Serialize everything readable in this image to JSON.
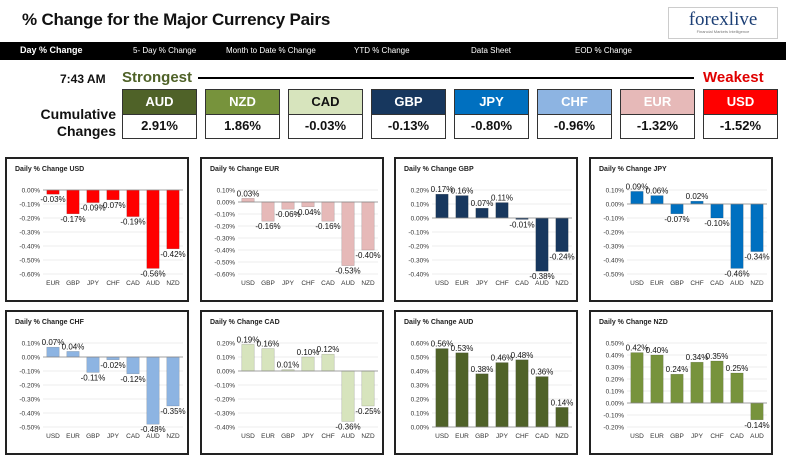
{
  "header": {
    "title": "% Change for the Major Currency Pairs"
  },
  "logo": {
    "text": "forexlive",
    "subtitle": "Financial Markets Intelligence"
  },
  "nav": [
    {
      "label": "Day % Change",
      "active": true
    },
    {
      "label": "5- Day % Change"
    },
    {
      "label": "Month to Date % Change"
    },
    {
      "label": "YTD % Change"
    },
    {
      "label": "Data Sheet"
    },
    {
      "label": "EOD % Change"
    }
  ],
  "summary": {
    "time": "7:43 AM",
    "strongest_label": "Strongest",
    "weakest_label": "Weakest",
    "cumulative_label": "Cumulative Changes",
    "currencies": [
      {
        "code": "AUD",
        "value": "2.91%",
        "bg": "#4f6228",
        "fg": "#ffffff"
      },
      {
        "code": "NZD",
        "value": "1.86%",
        "bg": "#77933c",
        "fg": "#ffffff"
      },
      {
        "code": "CAD",
        "value": "-0.03%",
        "bg": "#d7e4bd",
        "fg": "#111111"
      },
      {
        "code": "GBP",
        "value": "-0.13%",
        "bg": "#17375e",
        "fg": "#ffffff"
      },
      {
        "code": "JPY",
        "value": "-0.80%",
        "bg": "#0070c0",
        "fg": "#ffffff"
      },
      {
        "code": "CHF",
        "value": "-0.96%",
        "bg": "#8db4e2",
        "fg": "#ffffff"
      },
      {
        "code": "EUR",
        "value": "-1.32%",
        "bg": "#e6b9b8",
        "fg": "#ffffff"
      },
      {
        "code": "USD",
        "value": "-1.52%",
        "bg": "#ff0000",
        "fg": "#ffffff"
      }
    ]
  },
  "chart_data": [
    {
      "type": "bar",
      "title": "Daily % Change USD",
      "color": "#ff0000",
      "categories": [
        "EUR",
        "GBP",
        "JPY",
        "CHF",
        "CAD",
        "AUD",
        "NZD"
      ],
      "values": [
        -0.03,
        -0.17,
        -0.09,
        -0.07,
        -0.19,
        -0.56,
        -0.42
      ],
      "labels": [
        "-0.03%",
        "-0.17%",
        "-0.09%",
        "-0.07%",
        "-0.19%",
        "-0.56%",
        "-0.42%"
      ],
      "ylim": [
        -0.6,
        0
      ],
      "yticks": [
        "0.00%",
        "-0.10%",
        "-0.20%",
        "-0.30%",
        "-0.40%",
        "-0.50%",
        "-0.60%"
      ]
    },
    {
      "type": "bar",
      "title": "Daily % Change EUR",
      "color": "#e6b9b8",
      "categories": [
        "USD",
        "GBP",
        "JPY",
        "CHF",
        "CAD",
        "AUD",
        "NZD"
      ],
      "values": [
        0.03,
        -0.16,
        -0.06,
        -0.04,
        -0.16,
        -0.53,
        -0.4
      ],
      "labels": [
        "0.03%",
        "-0.16%",
        "-0.06%",
        "-0.04%",
        "-0.16%",
        "-0.53%",
        "-0.40%"
      ],
      "ylim": [
        -0.6,
        0.1
      ],
      "yticks": [
        "0.10%",
        "0.00%",
        "-0.10%",
        "-0.20%",
        "-0.30%",
        "-0.40%",
        "-0.50%",
        "-0.60%"
      ]
    },
    {
      "type": "bar",
      "title": "Daily % Change GBP",
      "color": "#17375e",
      "categories": [
        "USD",
        "EUR",
        "JPY",
        "CHF",
        "CAD",
        "AUD",
        "NZD"
      ],
      "values": [
        0.17,
        0.16,
        0.07,
        0.11,
        -0.01,
        -0.38,
        -0.24
      ],
      "labels": [
        "0.17%",
        "0.16%",
        "0.07%",
        "0.11%",
        "-0.01%",
        "-0.38%",
        "-0.24%"
      ],
      "ylim": [
        -0.4,
        0.2
      ],
      "yticks": [
        "0.20%",
        "0.10%",
        "0.00%",
        "-0.10%",
        "-0.20%",
        "-0.30%",
        "-0.40%"
      ]
    },
    {
      "type": "bar",
      "title": "Daily % Change JPY",
      "color": "#0070c0",
      "categories": [
        "USD",
        "EUR",
        "GBP",
        "CHF",
        "CAD",
        "AUD",
        "NZD"
      ],
      "values": [
        0.09,
        0.06,
        -0.07,
        0.02,
        -0.1,
        -0.46,
        -0.34
      ],
      "labels": [
        "0.09%",
        "0.06%",
        "-0.07%",
        "0.02%",
        "-0.10%",
        "-0.46%",
        "-0.34%"
      ],
      "ylim": [
        -0.5,
        0.1
      ],
      "yticks": [
        "0.10%",
        "0.00%",
        "-0.10%",
        "-0.20%",
        "-0.30%",
        "-0.40%",
        "-0.50%"
      ]
    },
    {
      "type": "bar",
      "title": "Daily % Change CHF",
      "color": "#8db4e2",
      "categories": [
        "USD",
        "EUR",
        "GBP",
        "JPY",
        "CAD",
        "AUD",
        "NZD"
      ],
      "values": [
        0.07,
        0.04,
        -0.11,
        -0.02,
        -0.12,
        -0.48,
        -0.35
      ],
      "labels": [
        "0.07%",
        "0.04%",
        "-0.11%",
        "-0.02%",
        "-0.12%",
        "-0.48%",
        "-0.35%"
      ],
      "ylim": [
        -0.5,
        0.1
      ],
      "yticks": [
        "0.10%",
        "0.00%",
        "-0.10%",
        "-0.20%",
        "-0.30%",
        "-0.40%",
        "-0.50%"
      ]
    },
    {
      "type": "bar",
      "title": "Daily % Change CAD",
      "color": "#d7e4bd",
      "categories": [
        "USD",
        "EUR",
        "GBP",
        "JPY",
        "CHF",
        "AUD",
        "NZD"
      ],
      "values": [
        0.19,
        0.16,
        0.01,
        0.1,
        0.12,
        -0.36,
        -0.25
      ],
      "labels": [
        "0.19%",
        "0.16%",
        "0.01%",
        "0.10%",
        "0.12%",
        "-0.36%",
        "-0.25%"
      ],
      "ylim": [
        -0.4,
        0.2
      ],
      "yticks": [
        "0.20%",
        "0.10%",
        "0.00%",
        "-0.10%",
        "-0.20%",
        "-0.30%",
        "-0.40%"
      ]
    },
    {
      "type": "bar",
      "title": "Daily % Change AUD",
      "color": "#4f6228",
      "categories": [
        "USD",
        "EUR",
        "GBP",
        "JPY",
        "CHF",
        "CAD",
        "NZD"
      ],
      "values": [
        0.56,
        0.53,
        0.38,
        0.46,
        0.48,
        0.36,
        0.14
      ],
      "labels": [
        "0.56%",
        "0.53%",
        "0.38%",
        "0.46%",
        "0.48%",
        "0.36%",
        "0.14%"
      ],
      "ylim": [
        0,
        0.6
      ],
      "yticks": [
        "0.60%",
        "0.50%",
        "0.40%",
        "0.30%",
        "0.20%",
        "0.10%",
        "0.00%"
      ]
    },
    {
      "type": "bar",
      "title": "Daily % Change NZD",
      "color": "#77933c",
      "categories": [
        "USD",
        "EUR",
        "GBP",
        "JPY",
        "CHF",
        "CAD",
        "AUD"
      ],
      "values": [
        0.42,
        0.4,
        0.24,
        0.34,
        0.35,
        0.25,
        -0.14
      ],
      "labels": [
        "0.42%",
        "0.40%",
        "0.24%",
        "0.34%",
        "0.35%",
        "0.25%",
        "-0.14%"
      ],
      "ylim": [
        -0.2,
        0.5
      ],
      "yticks": [
        "0.50%",
        "0.40%",
        "0.30%",
        "0.20%",
        "0.10%",
        "0.00%",
        "-0.10%",
        "-0.20%"
      ]
    }
  ]
}
